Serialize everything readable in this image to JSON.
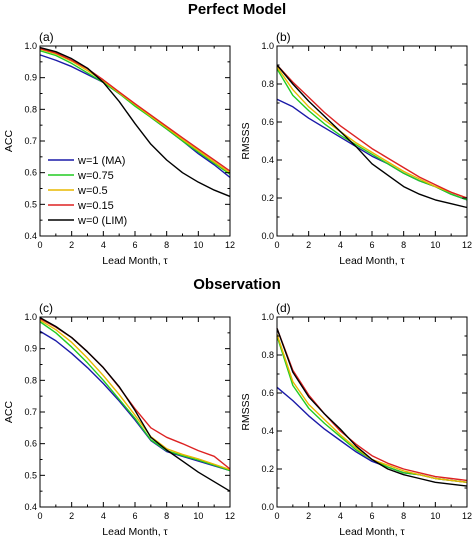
{
  "section_titles": [
    "Perfect Model",
    "Observation"
  ],
  "chart_data": [
    {
      "type": "line",
      "panel_label": "(a)",
      "section": "Perfect Model",
      "xlabel": "Lead Month, τ",
      "ylabel": "ACC",
      "xlim": [
        0,
        12
      ],
      "ylim": [
        0.4,
        1.0
      ],
      "xticks": [
        0,
        2,
        4,
        6,
        8,
        10,
        12
      ],
      "yticks": [
        0.4,
        0.5,
        0.6,
        0.7,
        0.8,
        0.9,
        1.0
      ],
      "legend": true,
      "x": [
        0,
        1,
        2,
        3,
        4,
        5,
        6,
        7,
        8,
        9,
        10,
        11,
        12
      ],
      "series": [
        {
          "name": "w=1 (MA)",
          "color": "#1a1aa8",
          "values": [
            0.972,
            0.955,
            0.935,
            0.91,
            0.885,
            0.85,
            0.815,
            0.775,
            0.738,
            0.7,
            0.66,
            0.625,
            0.585
          ]
        },
        {
          "name": "w=0.75",
          "color": "#22cc22",
          "values": [
            0.985,
            0.97,
            0.945,
            0.915,
            0.885,
            0.85,
            0.81,
            0.775,
            0.738,
            0.7,
            0.665,
            0.63,
            0.595
          ]
        },
        {
          "name": "w=0.5",
          "color": "#e8b800",
          "values": [
            0.99,
            0.975,
            0.952,
            0.922,
            0.89,
            0.852,
            0.815,
            0.778,
            0.742,
            0.705,
            0.67,
            0.634,
            0.6
          ]
        },
        {
          "name": "w=0.15",
          "color": "#dd2222",
          "values": [
            0.992,
            0.978,
            0.955,
            0.928,
            0.893,
            0.855,
            0.818,
            0.782,
            0.746,
            0.71,
            0.675,
            0.64,
            0.605
          ]
        },
        {
          "name": "w=0 (LIM)",
          "color": "#000000",
          "values": [
            0.995,
            0.982,
            0.96,
            0.93,
            0.885,
            0.825,
            0.755,
            0.69,
            0.64,
            0.6,
            0.57,
            0.545,
            0.525
          ]
        }
      ]
    },
    {
      "type": "line",
      "panel_label": "(b)",
      "section": "Perfect Model",
      "xlabel": "Lead Month, τ",
      "ylabel": "RMSSS",
      "xlim": [
        0,
        12
      ],
      "ylim": [
        0.0,
        1.0
      ],
      "xticks": [
        0,
        2,
        4,
        6,
        8,
        10,
        12
      ],
      "yticks": [
        0.0,
        0.2,
        0.4,
        0.6,
        0.8,
        1.0
      ],
      "legend": false,
      "x": [
        0,
        1,
        2,
        3,
        4,
        5,
        6,
        7,
        8,
        9,
        10,
        11,
        12
      ],
      "series": [
        {
          "name": "w=1 (MA)",
          "color": "#1a1aa8",
          "values": [
            0.72,
            0.68,
            0.62,
            0.57,
            0.52,
            0.47,
            0.42,
            0.38,
            0.33,
            0.29,
            0.26,
            0.22,
            0.19
          ]
        },
        {
          "name": "w=0.75",
          "color": "#22cc22",
          "values": [
            0.88,
            0.74,
            0.66,
            0.59,
            0.53,
            0.48,
            0.43,
            0.38,
            0.33,
            0.29,
            0.26,
            0.22,
            0.19
          ]
        },
        {
          "name": "w=0.5",
          "color": "#e8b800",
          "values": [
            0.89,
            0.77,
            0.68,
            0.61,
            0.55,
            0.49,
            0.44,
            0.39,
            0.34,
            0.3,
            0.26,
            0.23,
            0.2
          ]
        },
        {
          "name": "w=0.15",
          "color": "#dd2222",
          "values": [
            0.9,
            0.81,
            0.73,
            0.65,
            0.58,
            0.52,
            0.46,
            0.41,
            0.36,
            0.31,
            0.27,
            0.23,
            0.2
          ]
        },
        {
          "name": "w=0 (LIM)",
          "color": "#000000",
          "values": [
            0.9,
            0.8,
            0.71,
            0.63,
            0.55,
            0.47,
            0.38,
            0.32,
            0.26,
            0.22,
            0.19,
            0.17,
            0.15
          ]
        }
      ]
    },
    {
      "type": "line",
      "panel_label": "(c)",
      "section": "Observation",
      "xlabel": "Lead Month, τ",
      "ylabel": "ACC",
      "xlim": [
        0,
        12
      ],
      "ylim": [
        0.4,
        1.0
      ],
      "xticks": [
        0,
        2,
        4,
        6,
        8,
        10,
        12
      ],
      "yticks": [
        0.4,
        0.5,
        0.6,
        0.7,
        0.8,
        0.9,
        1.0
      ],
      "legend": false,
      "x": [
        0,
        1,
        2,
        3,
        4,
        5,
        6,
        7,
        8,
        9,
        10,
        11,
        12
      ],
      "series": [
        {
          "name": "w=1 (MA)",
          "color": "#1a1aa8",
          "values": [
            0.955,
            0.925,
            0.885,
            0.84,
            0.79,
            0.735,
            0.675,
            0.61,
            0.575,
            0.56,
            0.545,
            0.53,
            0.515
          ]
        },
        {
          "name": "w=0.75",
          "color": "#22cc22",
          "values": [
            0.985,
            0.95,
            0.905,
            0.855,
            0.8,
            0.74,
            0.68,
            0.612,
            0.578,
            0.562,
            0.548,
            0.532,
            0.515
          ]
        },
        {
          "name": "w=0.5",
          "color": "#e8b800",
          "values": [
            0.99,
            0.96,
            0.92,
            0.87,
            0.815,
            0.755,
            0.69,
            0.622,
            0.584,
            0.566,
            0.552,
            0.535,
            0.518
          ]
        },
        {
          "name": "w=0.15",
          "color": "#dd2222",
          "values": [
            0.995,
            0.968,
            0.935,
            0.89,
            0.84,
            0.778,
            0.71,
            0.65,
            0.62,
            0.6,
            0.578,
            0.56,
            0.52
          ]
        },
        {
          "name": "w=0 (LIM)",
          "color": "#000000",
          "values": [
            0.998,
            0.97,
            0.935,
            0.89,
            0.84,
            0.78,
            0.705,
            0.62,
            0.58,
            0.545,
            0.51,
            0.48,
            0.45
          ]
        }
      ]
    },
    {
      "type": "line",
      "panel_label": "(d)",
      "section": "Observation",
      "xlabel": "Lead Month, τ",
      "ylabel": "RMSSS",
      "xlim": [
        0,
        12
      ],
      "ylim": [
        0.0,
        1.0
      ],
      "xticks": [
        0,
        2,
        4,
        6,
        8,
        10,
        12
      ],
      "yticks": [
        0.0,
        0.2,
        0.4,
        0.6,
        0.8,
        1.0
      ],
      "legend": false,
      "x": [
        0,
        1,
        2,
        3,
        4,
        5,
        6,
        7,
        8,
        9,
        10,
        11,
        12
      ],
      "series": [
        {
          "name": "w=1 (MA)",
          "color": "#1a1aa8",
          "values": [
            0.63,
            0.56,
            0.48,
            0.41,
            0.35,
            0.29,
            0.24,
            0.21,
            0.18,
            0.17,
            0.15,
            0.14,
            0.13
          ]
        },
        {
          "name": "w=0.75",
          "color": "#22cc22",
          "values": [
            0.9,
            0.64,
            0.52,
            0.44,
            0.37,
            0.3,
            0.25,
            0.21,
            0.18,
            0.17,
            0.15,
            0.14,
            0.13
          ]
        },
        {
          "name": "w=0.5",
          "color": "#e8b800",
          "values": [
            0.91,
            0.66,
            0.54,
            0.46,
            0.38,
            0.31,
            0.25,
            0.22,
            0.19,
            0.17,
            0.15,
            0.14,
            0.13
          ]
        },
        {
          "name": "w=0.15",
          "color": "#dd2222",
          "values": [
            0.94,
            0.72,
            0.59,
            0.49,
            0.4,
            0.33,
            0.27,
            0.23,
            0.2,
            0.18,
            0.16,
            0.15,
            0.14
          ]
        },
        {
          "name": "w=0 (LIM)",
          "color": "#000000",
          "values": [
            0.94,
            0.71,
            0.58,
            0.49,
            0.41,
            0.32,
            0.25,
            0.2,
            0.17,
            0.15,
            0.13,
            0.12,
            0.11
          ]
        }
      ]
    }
  ]
}
